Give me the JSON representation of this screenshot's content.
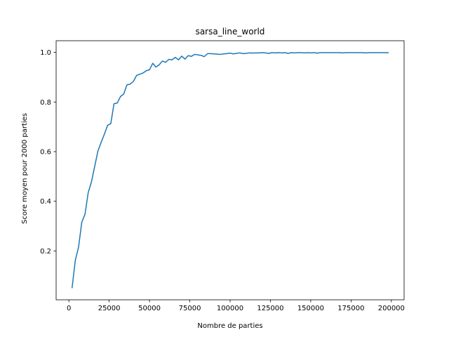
{
  "chart_data": {
    "type": "line",
    "title": "sarsa_line_world",
    "xlabel": "Nombre de parties",
    "ylabel": "Score moyen pour 2000 parties",
    "xlim": [
      -7900,
      207900
    ],
    "ylim": [
      0.003,
      1.047
    ],
    "xticks": [
      0,
      25000,
      50000,
      75000,
      100000,
      125000,
      150000,
      175000,
      200000
    ],
    "xtick_labels": [
      "0",
      "25000",
      "50000",
      "75000",
      "100000",
      "125000",
      "150000",
      "175000",
      "200000"
    ],
    "yticks": [
      0.2,
      0.4,
      0.6,
      0.8,
      1.0
    ],
    "ytick_labels": [
      "0.2",
      "0.4",
      "0.6",
      "0.8",
      "1.0"
    ],
    "grid": false,
    "legend": null,
    "colors": {
      "series": "#1f77b4"
    },
    "series": [
      {
        "x": [
          2000,
          4000,
          6000,
          8000,
          10000,
          12000,
          14000,
          16000,
          18000,
          20000,
          22000,
          24000,
          26000,
          28000,
          30000,
          32000,
          34000,
          36000,
          38000,
          40000,
          42000,
          44000,
          46000,
          48000,
          50000,
          52000,
          54000,
          56000,
          58000,
          60000,
          62000,
          64000,
          66000,
          68000,
          70000,
          72000,
          74000,
          76000,
          78000,
          80000,
          82000,
          84000,
          86000,
          88000,
          90000,
          92000,
          94000,
          96000,
          98000,
          100000,
          102000,
          104000,
          106000,
          108000,
          110000,
          112000,
          114000,
          116000,
          118000,
          120000,
          122000,
          124000,
          126000,
          128000,
          130000,
          132000,
          134000,
          136000,
          138000,
          140000,
          142000,
          144000,
          146000,
          148000,
          150000,
          152000,
          154000,
          156000,
          158000,
          160000,
          162000,
          164000,
          166000,
          168000,
          170000,
          172000,
          174000,
          176000,
          178000,
          180000,
          182000,
          184000,
          186000,
          188000,
          190000,
          192000,
          194000,
          196000,
          198000
        ],
        "y": [
          0.052,
          0.162,
          0.215,
          0.315,
          0.348,
          0.435,
          0.478,
          0.54,
          0.602,
          0.637,
          0.67,
          0.706,
          0.713,
          0.793,
          0.796,
          0.822,
          0.832,
          0.869,
          0.872,
          0.883,
          0.907,
          0.912,
          0.917,
          0.926,
          0.93,
          0.956,
          0.941,
          0.95,
          0.965,
          0.96,
          0.972,
          0.97,
          0.98,
          0.97,
          0.985,
          0.973,
          0.987,
          0.984,
          0.992,
          0.99,
          0.988,
          0.983,
          0.995,
          0.995,
          0.994,
          0.993,
          0.992,
          0.994,
          0.995,
          0.997,
          0.994,
          0.996,
          0.998,
          0.995,
          0.996,
          0.998,
          0.997,
          0.998,
          0.998,
          0.999,
          0.998,
          0.996,
          0.999,
          0.998,
          0.999,
          0.998,
          0.999,
          0.996,
          0.999,
          0.998,
          0.999,
          0.999,
          0.998,
          0.999,
          0.998,
          0.999,
          0.997,
          0.999,
          0.999,
          0.999,
          0.999,
          0.999,
          0.999,
          0.999,
          0.998,
          0.999,
          0.999,
          0.999,
          0.999,
          0.999,
          0.999,
          0.998,
          0.999,
          0.999,
          0.999,
          0.999,
          0.999,
          0.999,
          0.999
        ]
      }
    ]
  }
}
